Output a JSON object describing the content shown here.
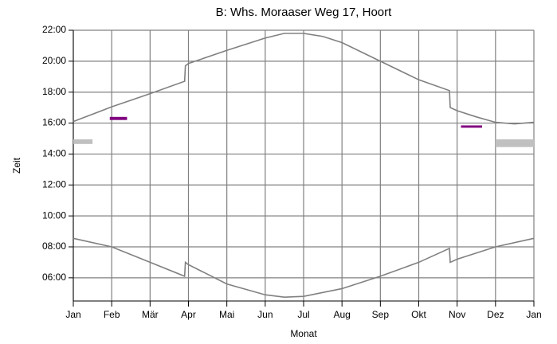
{
  "chart_data": {
    "type": "line",
    "title": "B: Whs. Moraaser Weg 17, Hoort",
    "x_label": "Monat",
    "y_label": "Zeit",
    "xlim": [
      0,
      12
    ],
    "xticks": [
      {
        "value": 0,
        "label": "Jan"
      },
      {
        "value": 1,
        "label": "Feb"
      },
      {
        "value": 2,
        "label": "Mär"
      },
      {
        "value": 3,
        "label": "Apr"
      },
      {
        "value": 4,
        "label": "Mai"
      },
      {
        "value": 5,
        "label": "Jun"
      },
      {
        "value": 6,
        "label": "Jul"
      },
      {
        "value": 7,
        "label": "Aug"
      },
      {
        "value": 8,
        "label": "Sep"
      },
      {
        "value": 9,
        "label": "Okt"
      },
      {
        "value": 10,
        "label": "Nov"
      },
      {
        "value": 11,
        "label": "Dez"
      },
      {
        "value": 12,
        "label": "Jan"
      }
    ],
    "ylim": [
      4.5,
      22
    ],
    "yticks": [
      {
        "value": 6,
        "label": "06:00"
      },
      {
        "value": 8,
        "label": "08:00"
      },
      {
        "value": 10,
        "label": "10:00"
      },
      {
        "value": 12,
        "label": "12:00"
      },
      {
        "value": 14,
        "label": "14:00"
      },
      {
        "value": 16,
        "label": "16:00"
      },
      {
        "value": 18,
        "label": "18:00"
      },
      {
        "value": 20,
        "label": "20:00"
      },
      {
        "value": 22,
        "label": "22:00"
      }
    ],
    "grid": true,
    "series": [
      {
        "color": "#808080",
        "x": [
          0,
          1,
          2,
          2.9,
          2.92,
          3,
          4,
          5,
          5.5,
          6,
          6.5,
          7,
          8,
          9,
          9.8,
          9.82,
          10,
          10.5,
          11,
          11.5,
          12
        ],
        "values": [
          16.1,
          17.05,
          17.9,
          18.7,
          19.7,
          19.85,
          20.7,
          21.5,
          21.8,
          21.8,
          21.6,
          21.2,
          20.0,
          18.8,
          18.1,
          17.0,
          16.8,
          16.4,
          16.05,
          15.95,
          16.05
        ]
      },
      {
        "color": "#808080",
        "x": [
          0,
          1,
          2,
          2.9,
          2.92,
          3,
          4,
          5,
          5.5,
          6,
          7,
          8,
          9,
          9.8,
          9.82,
          10,
          11,
          12
        ],
        "values": [
          8.55,
          8.0,
          7.0,
          6.1,
          7.0,
          6.85,
          5.6,
          4.9,
          4.75,
          4.8,
          5.3,
          6.1,
          7.0,
          7.9,
          7.0,
          7.2,
          8.0,
          8.55
        ]
      }
    ],
    "regions": [
      {
        "color": "#800080",
        "x": [
          0.95,
          1.4
        ],
        "y": [
          16.2,
          16.4
        ]
      },
      {
        "color": "#800080",
        "x": [
          10.1,
          10.65
        ],
        "y": [
          15.7,
          15.85
        ]
      },
      {
        "color": "#c0c0c0",
        "x": [
          0,
          0.5
        ],
        "y": [
          14.65,
          14.95
        ]
      },
      {
        "color": "#c0c0c0",
        "x": [
          11.0,
          12
        ],
        "y": [
          14.45,
          14.95
        ]
      }
    ]
  }
}
